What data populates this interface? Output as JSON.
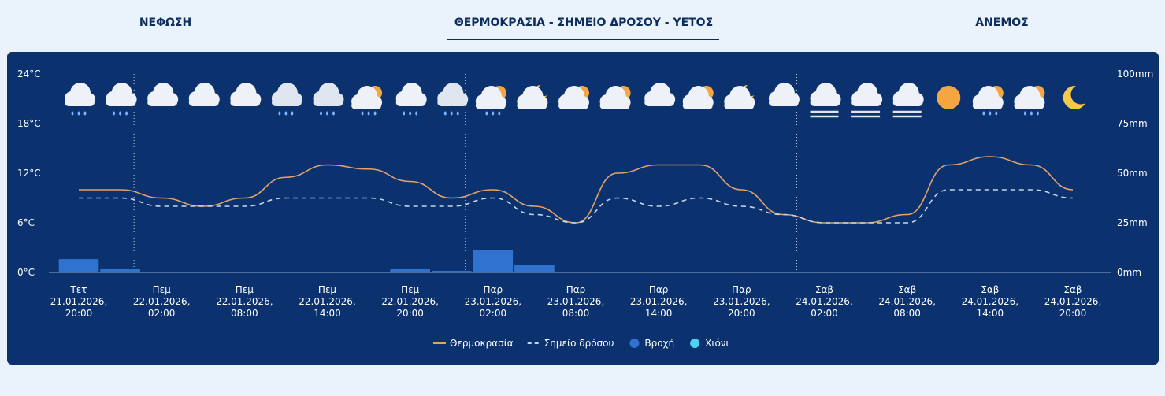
{
  "tabs": [
    "ΝΕΦΩΣΗ",
    "ΘΕΡΜΟΚΡΑΣΙΑ - ΣΗΜΕΙΟ ΔΡΟΣΟΥ - ΥΕΤΟΣ",
    "ΑΝΕΜΟΣ"
  ],
  "chart_data": {
    "type": "line",
    "categories": [
      "Τετ\n21.01.2026,\n20:00",
      null,
      "Πεμ\n22.01.2026,\n02:00",
      null,
      "Πεμ\n22.01.2026,\n08:00",
      null,
      "Πεμ\n22.01.2026,\n14:00",
      null,
      "Πεμ\n22.01.2026,\n20:00",
      null,
      "Παρ\n23.01.2026,\n02:00",
      null,
      "Παρ\n23.01.2026,\n08:00",
      null,
      "Παρ\n23.01.2026,\n14:00",
      null,
      "Παρ\n23.01.2026,\n20:00",
      null,
      "Σαβ\n24.01.2026,\n02:00",
      null,
      "Σαβ\n24.01.2026,\n08:00",
      null,
      "Σαβ\n24.01.2026,\n14:00",
      null,
      "Σαβ\n24.01.2026,\n20:00"
    ],
    "series": [
      {
        "name": "Θερμοκρασία",
        "color": "#e0a36a",
        "style": "solid",
        "values": [
          10,
          10,
          9,
          8,
          9,
          11.5,
          13,
          12.5,
          11,
          9,
          10,
          8,
          6,
          12,
          13,
          13,
          10,
          7,
          6,
          6,
          7,
          13,
          14,
          13,
          10
        ]
      },
      {
        "name": "Σημείο δρόσου",
        "color": "#c9d3e6",
        "style": "dashed",
        "values": [
          9,
          9,
          8,
          8,
          8,
          9,
          9,
          9,
          8,
          8,
          9,
          7,
          6,
          9,
          8,
          9,
          8,
          7,
          6,
          6,
          6,
          10,
          10,
          10,
          9
        ]
      },
      {
        "name": "Βροχή",
        "color": "#2f72d0",
        "type": "bar",
        "axis": "y2",
        "values": [
          6.7,
          1.6,
          0,
          0,
          0,
          0,
          0,
          0,
          1.6,
          0.8,
          11.5,
          3.6,
          0,
          0,
          0,
          0,
          0,
          0,
          0,
          0,
          0,
          0,
          0,
          0,
          0
        ]
      },
      {
        "name": "Χιόνι",
        "color": "#4fd0f5",
        "type": "bar",
        "axis": "y2",
        "values": [
          0,
          0,
          0,
          0,
          0,
          0,
          0,
          0,
          0,
          0,
          0,
          0,
          0,
          0,
          0,
          0,
          0,
          0,
          0,
          0,
          0,
          0,
          0,
          0,
          0
        ]
      }
    ],
    "ylim": [
      0,
      24
    ],
    "yticks": [
      {
        "value": 0,
        "label": "0°C"
      },
      {
        "value": 6,
        "label": "6°C"
      },
      {
        "value": 12,
        "label": "12°C"
      },
      {
        "value": 18,
        "label": "18°C"
      },
      {
        "value": 24,
        "label": "24°C"
      }
    ],
    "y2lim": [
      0,
      100
    ],
    "y2ticks": [
      {
        "value": 0,
        "label": "0mm"
      },
      {
        "value": 25,
        "label": "25mm"
      },
      {
        "value": 50,
        "label": "50mm"
      },
      {
        "value": 75,
        "label": "75mm"
      },
      {
        "value": 100,
        "label": "100mm"
      }
    ],
    "legend": "bottom"
  }
}
